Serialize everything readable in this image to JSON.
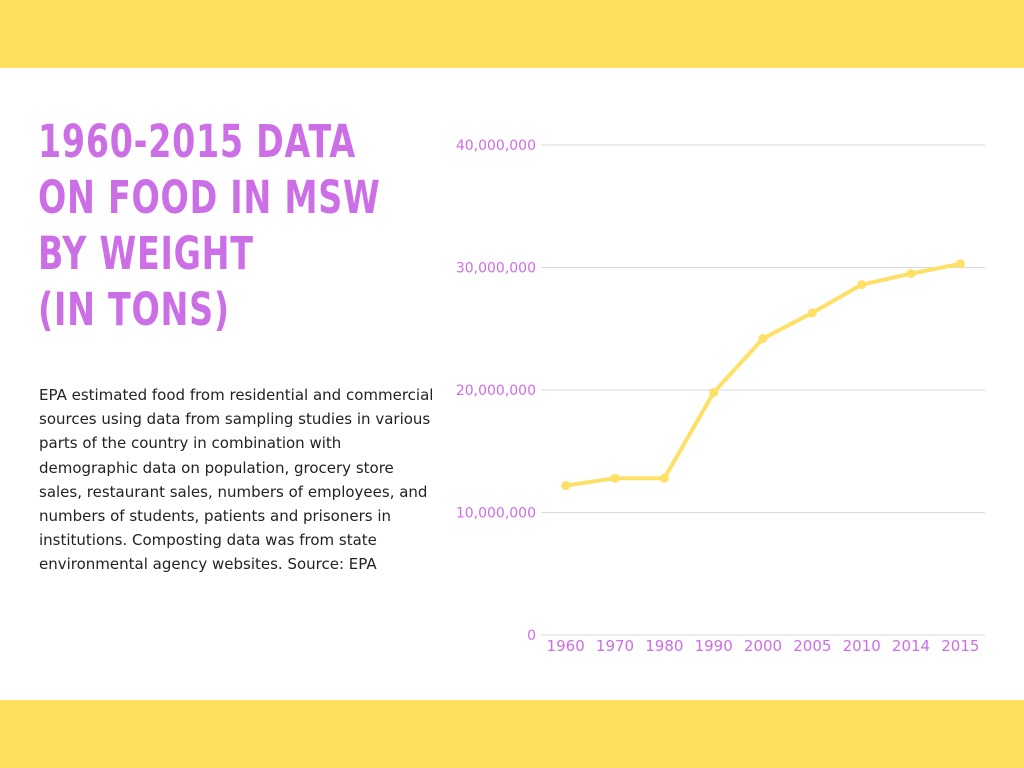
{
  "title_lines": [
    "1960-2015 Data",
    "on Food in MSW",
    "by Weight",
    "(in tons)"
  ],
  "description": "EPA estimated food from residential and commercial sources using data from sampling studies in various parts of the country in combination with demographic data on population, grocery store sales, restaurant sales, numbers of employees, and numbers of students, patients and prisoners in institutions. Composting data was from state environmental agency websites. Source: EPA",
  "colors": {
    "band": "#ffdf5e",
    "accent": "#cc6ee6",
    "line": "#ffe066",
    "grid": "#d9d9d9"
  },
  "chart_data": {
    "type": "line",
    "title": "1960-2015 Data on Food in MSW by Weight (in tons)",
    "xlabel": "",
    "ylabel": "",
    "categories": [
      "1960",
      "1970",
      "1980",
      "1990",
      "2000",
      "2005",
      "2010",
      "2014",
      "2015"
    ],
    "series": [
      {
        "values": [
          12200000,
          12800000,
          12800000,
          19800000,
          24200000,
          26300000,
          28600000,
          29500000,
          30300000
        ]
      }
    ],
    "ylim": [
      0,
      40000000
    ],
    "yticks": [
      0,
      10000000,
      20000000,
      30000000,
      40000000
    ],
    "ytick_labels": [
      "0",
      "10,000,000",
      "20,000,000",
      "30,000,000",
      "40,000,000"
    ],
    "grid": true,
    "legend": "none"
  }
}
